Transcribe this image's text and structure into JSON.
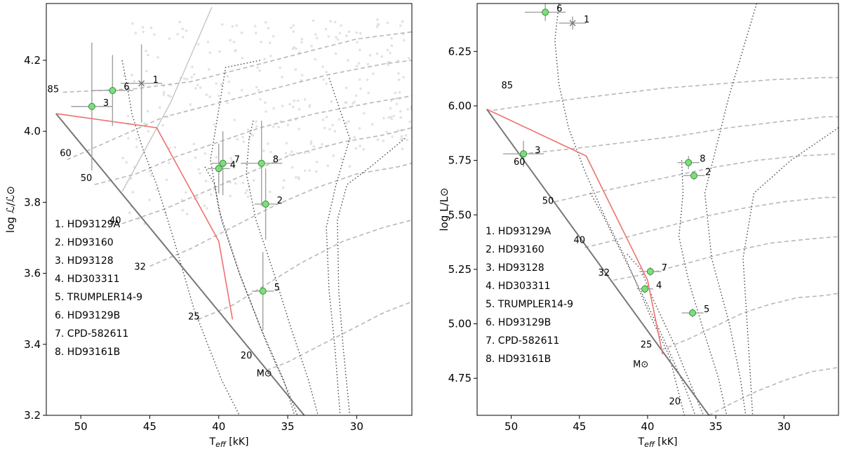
{
  "colors": {
    "zams": "#777777",
    "red_line": "#f07070",
    "track": "#b8b8b8",
    "iso": "#444444",
    "cloud": "#e2e2e2",
    "point_fill": "#7be07b",
    "point_edge": "#3c8a3c",
    "errbar": "#a0a0a0"
  },
  "chart_data": [
    {
      "type": "scatter",
      "panel": "left",
      "xlabel": "T",
      "xlabel_sub": "eff",
      "xlabel_unit": " [kK]",
      "ylabel": "log ℒ/ℒ⊙",
      "xlim": [
        52.5,
        26
      ],
      "ylim": [
        3.2,
        4.36
      ],
      "xticks": [
        50,
        45,
        40,
        35,
        30
      ],
      "xtick_labels": [
        "50",
        "45",
        "40",
        "35",
        "30"
      ],
      "yticks": [
        3.2,
        3.4,
        3.6,
        3.8,
        4.0,
        4.2
      ],
      "ytick_labels": [
        "3.2",
        "3.4",
        "3.6",
        "3.8",
        "4.0",
        "4.2"
      ],
      "legend": [
        "1. HD93129A",
        "2. HD93160",
        "3. HD93128",
        "4. HD303311",
        "5. TRUMPLER14-9",
        "6. HD93129B",
        "7. CPD-582611",
        "8. HD93161B"
      ],
      "legend_placement": "lower-left",
      "unit_label": "M⊙",
      "unit_label_pos": [
        36.7,
        3.31
      ],
      "zams": [
        [
          51.8,
          4.05
        ],
        [
          33.8,
          3.2
        ]
      ],
      "red_line": [
        [
          51.8,
          4.05
        ],
        [
          44.5,
          4.01
        ],
        [
          40.0,
          3.69
        ],
        [
          39.0,
          3.47
        ]
      ],
      "solid_line": [
        [
          47.0,
          3.83
        ],
        [
          43.5,
          4.08
        ],
        [
          40.5,
          4.35
        ]
      ],
      "mass_labels": [
        {
          "text": "85",
          "x": 52.0,
          "y": 4.11
        },
        {
          "text": "60",
          "x": 51.1,
          "y": 3.93
        },
        {
          "text": "50",
          "x": 49.6,
          "y": 3.86
        },
        {
          "text": "40",
          "x": 47.5,
          "y": 3.74
        },
        {
          "text": "32",
          "x": 45.7,
          "y": 3.61
        },
        {
          "text": "25",
          "x": 41.8,
          "y": 3.47
        },
        {
          "text": "20",
          "x": 38.0,
          "y": 3.36
        }
      ],
      "tracks": [
        [
          [
            51.3,
            4.11
          ],
          [
            46,
            4.12
          ],
          [
            42,
            4.14
          ],
          [
            38,
            4.18
          ],
          [
            34,
            4.22
          ],
          [
            30,
            4.26
          ],
          [
            26,
            4.28
          ]
        ],
        [
          [
            51.0,
            3.92
          ],
          [
            47.5,
            3.98
          ],
          [
            44,
            4.04
          ],
          [
            40,
            4.08
          ],
          [
            36,
            4.12
          ],
          [
            32,
            4.16
          ],
          [
            28,
            4.19
          ],
          [
            26,
            4.2
          ]
        ],
        [
          [
            49.0,
            3.85
          ],
          [
            46,
            3.88
          ],
          [
            43,
            3.93
          ],
          [
            40,
            3.97
          ],
          [
            37,
            4.01
          ],
          [
            33,
            4.05
          ],
          [
            29,
            4.08
          ],
          [
            26,
            4.1
          ]
        ],
        [
          [
            47.0,
            3.74
          ],
          [
            44,
            3.78
          ],
          [
            41,
            3.83
          ],
          [
            38,
            3.88
          ],
          [
            35,
            3.93
          ],
          [
            31,
            3.97
          ],
          [
            28,
            3.99
          ],
          [
            26,
            4.01
          ]
        ],
        [
          [
            45.0,
            3.62
          ],
          [
            42,
            3.67
          ],
          [
            39,
            3.73
          ],
          [
            36,
            3.79
          ],
          [
            33,
            3.84
          ],
          [
            30,
            3.88
          ],
          [
            27,
            3.9
          ],
          [
            26,
            3.91
          ]
        ],
        [
          [
            41.5,
            3.47
          ],
          [
            39,
            3.51
          ],
          [
            36.5,
            3.57
          ],
          [
            34,
            3.63
          ],
          [
            31,
            3.69
          ],
          [
            28,
            3.73
          ],
          [
            26,
            3.75
          ]
        ],
        [
          [
            37.0,
            3.32
          ],
          [
            35,
            3.35
          ],
          [
            32.5,
            3.4
          ],
          [
            30,
            3.45
          ],
          [
            28,
            3.49
          ],
          [
            26,
            3.52
          ]
        ]
      ],
      "isochrones": [
        [
          [
            47.0,
            4.2
          ],
          [
            46.6,
            4.12
          ],
          [
            46.3,
            4.05
          ],
          [
            45.5,
            3.95
          ],
          [
            44.5,
            3.85
          ],
          [
            43.3,
            3.7
          ],
          [
            41.8,
            3.5
          ],
          [
            39.8,
            3.3
          ],
          [
            38.5,
            3.2
          ]
        ],
        [
          [
            41.0,
            3.9
          ],
          [
            40.3,
            3.85
          ],
          [
            39.8,
            3.75
          ],
          [
            38.5,
            3.6
          ],
          [
            37.0,
            3.45
          ],
          [
            35.3,
            3.3
          ],
          [
            34.5,
            3.2
          ]
        ],
        [
          [
            37.5,
            4.03
          ],
          [
            37.8,
            3.98
          ],
          [
            38.0,
            3.88
          ],
          [
            37.3,
            3.75
          ],
          [
            36.0,
            3.6
          ],
          [
            34.8,
            3.45
          ],
          [
            33.5,
            3.3
          ],
          [
            32.8,
            3.2
          ]
        ],
        [
          [
            37.0,
            4.2
          ],
          [
            39.5,
            4.18
          ],
          [
            40.6,
            3.92
          ],
          [
            40.0,
            3.78
          ],
          [
            38.5,
            3.6
          ],
          [
            36.5,
            3.4
          ],
          [
            35.0,
            3.27
          ],
          [
            34.3,
            3.2
          ]
        ],
        [
          [
            32.0,
            4.15
          ],
          [
            30.5,
            3.98
          ],
          [
            31.5,
            3.85
          ],
          [
            32.2,
            3.73
          ],
          [
            32.0,
            3.55
          ],
          [
            31.6,
            3.4
          ],
          [
            31.2,
            3.2
          ]
        ],
        [
          [
            26.5,
            3.98
          ],
          [
            29,
            3.9
          ],
          [
            30.7,
            3.85
          ],
          [
            31.4,
            3.75
          ],
          [
            31.3,
            3.55
          ],
          [
            31.0,
            3.4
          ],
          [
            30.5,
            3.2
          ]
        ]
      ],
      "stars": [
        {
          "label": "1",
          "x": 45.6,
          "y": 4.135,
          "xerr": 1.5,
          "yerr": 0.11,
          "marker": "x"
        },
        {
          "label": "2",
          "x": 36.6,
          "y": 3.795,
          "xerr": 0.8,
          "yerr": 0.1,
          "marker": "o"
        },
        {
          "label": "3",
          "x": 49.2,
          "y": 4.07,
          "xerr": 1.5,
          "yerr": 0.18,
          "marker": "o"
        },
        {
          "label": "4",
          "x": 40.0,
          "y": 3.895,
          "xerr": 0.8,
          "yerr": 0.07,
          "marker": "o"
        },
        {
          "label": "5",
          "x": 36.8,
          "y": 3.55,
          "xerr": 0.8,
          "yerr": 0.11,
          "marker": "o"
        },
        {
          "label": "6",
          "x": 47.7,
          "y": 4.115,
          "xerr": 1.5,
          "yerr": 0.1,
          "marker": "o"
        },
        {
          "label": "7",
          "x": 39.7,
          "y": 3.91,
          "xerr": 0.8,
          "yerr": 0.09,
          "marker": "o"
        },
        {
          "label": "8",
          "x": 36.9,
          "y": 3.91,
          "xerr": 1.5,
          "yerr": 0.12,
          "marker": "o"
        }
      ],
      "cloud_region": {
        "x": [
          26,
          47
        ],
        "y": [
          3.6,
          4.32
        ]
      }
    },
    {
      "type": "scatter",
      "panel": "right",
      "xlabel": "T",
      "xlabel_sub": "eff",
      "xlabel_unit": " [kK]",
      "ylabel": "log L/L⊙",
      "xlim": [
        52.5,
        26
      ],
      "ylim": [
        4.58,
        6.47
      ],
      "xticks": [
        50,
        45,
        40,
        35,
        30
      ],
      "xtick_labels": [
        "50",
        "45",
        "40",
        "35",
        "30"
      ],
      "yticks": [
        4.75,
        5.0,
        5.25,
        5.5,
        5.75,
        6.0,
        6.25
      ],
      "ytick_labels": [
        "4.75",
        "5.00",
        "5.25",
        "5.50",
        "5.75",
        "6.00",
        "6.25"
      ],
      "legend": [
        "1. HD93129A",
        "2. HD93160",
        "3. HD93128",
        "4. HD303311",
        "5. TRUMPLER14-9",
        "6. HD93129B",
        "7. CPD-582611",
        "8. HD93161B"
      ],
      "legend_placement": "lower-left",
      "unit_label": "M⊙",
      "unit_label_pos": [
        40.5,
        4.8
      ],
      "zams": [
        [
          51.8,
          5.985
        ],
        [
          35.5,
          4.58
        ]
      ],
      "red_line": [
        [
          51.8,
          5.985
        ],
        [
          44.5,
          5.77
        ],
        [
          40.0,
          5.2
        ],
        [
          38.9,
          4.86
        ]
      ],
      "solid_line": [],
      "mass_labels": [
        {
          "text": "85",
          "x": 50.3,
          "y": 6.08
        },
        {
          "text": "60",
          "x": 49.4,
          "y": 5.73
        },
        {
          "text": "50",
          "x": 47.3,
          "y": 5.55
        },
        {
          "text": "40",
          "x": 45.0,
          "y": 5.37
        },
        {
          "text": "32",
          "x": 43.2,
          "y": 5.22
        },
        {
          "text": "25",
          "x": 40.1,
          "y": 4.89
        },
        {
          "text": "20",
          "x": 38.0,
          "y": 4.63
        }
      ],
      "tracks": [
        [
          [
            51.3,
            5.98
          ],
          [
            47,
            6.02
          ],
          [
            43,
            6.05
          ],
          [
            39,
            6.08
          ],
          [
            35,
            6.1
          ],
          [
            31,
            6.12
          ],
          [
            27,
            6.13
          ],
          [
            26,
            6.13
          ]
        ],
        [
          [
            49.2,
            5.78
          ],
          [
            46,
            5.8
          ],
          [
            42,
            5.83
          ],
          [
            38,
            5.86
          ],
          [
            34,
            5.9
          ],
          [
            30,
            5.93
          ],
          [
            27,
            5.95
          ],
          [
            26,
            5.95
          ]
        ],
        [
          [
            46.8,
            5.56
          ],
          [
            44,
            5.6
          ],
          [
            41,
            5.64
          ],
          [
            38,
            5.68
          ],
          [
            35,
            5.72
          ],
          [
            32,
            5.75
          ],
          [
            29,
            5.77
          ],
          [
            26,
            5.78
          ]
        ],
        [
          [
            44.6,
            5.35
          ],
          [
            42,
            5.39
          ],
          [
            39,
            5.44
          ],
          [
            36,
            5.49
          ],
          [
            33,
            5.53
          ],
          [
            30,
            5.56
          ],
          [
            27,
            5.58
          ],
          [
            26,
            5.58
          ]
        ],
        [
          [
            42.5,
            5.2
          ],
          [
            40,
            5.23
          ],
          [
            37,
            5.28
          ],
          [
            34,
            5.33
          ],
          [
            31,
            5.37
          ],
          [
            28,
            5.39
          ],
          [
            26,
            5.4
          ]
        ],
        [
          [
            39.0,
            4.88
          ],
          [
            37,
            4.93
          ],
          [
            35,
            4.99
          ],
          [
            33,
            5.05
          ],
          [
            31,
            5.09
          ],
          [
            29,
            5.12
          ],
          [
            27,
            5.13
          ],
          [
            26,
            5.14
          ]
        ],
        [
          [
            35.5,
            4.58
          ],
          [
            34,
            4.63
          ],
          [
            32,
            4.69
          ],
          [
            30,
            4.74
          ],
          [
            28,
            4.78
          ],
          [
            26,
            4.8
          ]
        ]
      ],
      "isochrones": [
        [
          [
            46.5,
            6.47
          ],
          [
            46.8,
            6.3
          ],
          [
            46.5,
            6.1
          ],
          [
            45.8,
            5.9
          ],
          [
            44.6,
            5.7
          ],
          [
            43.2,
            5.5
          ],
          [
            41.6,
            5.3
          ],
          [
            39.9,
            5.05
          ],
          [
            38.4,
            4.85
          ],
          [
            37.3,
            4.58
          ]
        ],
        [
          [
            44.2,
            5.6
          ],
          [
            43.3,
            5.5
          ],
          [
            41.7,
            5.3
          ],
          [
            40.1,
            5.1
          ],
          [
            38.6,
            4.9
          ],
          [
            37.2,
            4.7
          ],
          [
            36.5,
            4.58
          ]
        ],
        [
          [
            41.5,
            5.32
          ],
          [
            40.5,
            5.25
          ],
          [
            39.5,
            5.1
          ],
          [
            38.0,
            4.9
          ],
          [
            36.7,
            4.7
          ],
          [
            35.9,
            4.58
          ]
        ],
        [
          [
            37.5,
            5.75
          ],
          [
            37.4,
            5.6
          ],
          [
            37.7,
            5.4
          ],
          [
            37.0,
            5.2
          ],
          [
            35.8,
            4.95
          ],
          [
            34.8,
            4.75
          ],
          [
            34.2,
            4.58
          ]
        ],
        [
          [
            32.0,
            6.47
          ],
          [
            34.0,
            6.05
          ],
          [
            35.8,
            5.6
          ],
          [
            35.3,
            5.3
          ],
          [
            34.0,
            5.0
          ],
          [
            33.2,
            4.75
          ],
          [
            32.8,
            4.58
          ]
        ],
        [
          [
            26.0,
            5.9
          ],
          [
            29.5,
            5.75
          ],
          [
            32.2,
            5.6
          ],
          [
            33.0,
            5.3
          ],
          [
            32.7,
            5.0
          ],
          [
            32.5,
            4.8
          ],
          [
            32.3,
            4.58
          ]
        ]
      ],
      "stars": [
        {
          "label": "1",
          "x": 45.5,
          "y": 6.38,
          "xerr": 1.0,
          "yerr": 0.03,
          "marker": "x"
        },
        {
          "label": "2",
          "x": 36.6,
          "y": 5.68,
          "xerr": 0.8,
          "yerr": 0.02,
          "marker": "o"
        },
        {
          "label": "3",
          "x": 49.1,
          "y": 5.78,
          "xerr": 1.5,
          "yerr": 0.06,
          "marker": "o"
        },
        {
          "label": "4",
          "x": 40.2,
          "y": 5.16,
          "xerr": 0.6,
          "yerr": 0.02,
          "marker": "o"
        },
        {
          "label": "5",
          "x": 36.7,
          "y": 5.05,
          "xerr": 0.8,
          "yerr": 0.02,
          "marker": "o"
        },
        {
          "label": "6",
          "x": 47.5,
          "y": 6.43,
          "xerr": 1.5,
          "yerr": 0.04,
          "marker": "o"
        },
        {
          "label": "7",
          "x": 39.8,
          "y": 5.24,
          "xerr": 0.8,
          "yerr": 0.02,
          "marker": "o"
        },
        {
          "label": "8",
          "x": 37.0,
          "y": 5.74,
          "xerr": 0.8,
          "yerr": 0.03,
          "marker": "o"
        }
      ],
      "cloud_region": null
    }
  ]
}
